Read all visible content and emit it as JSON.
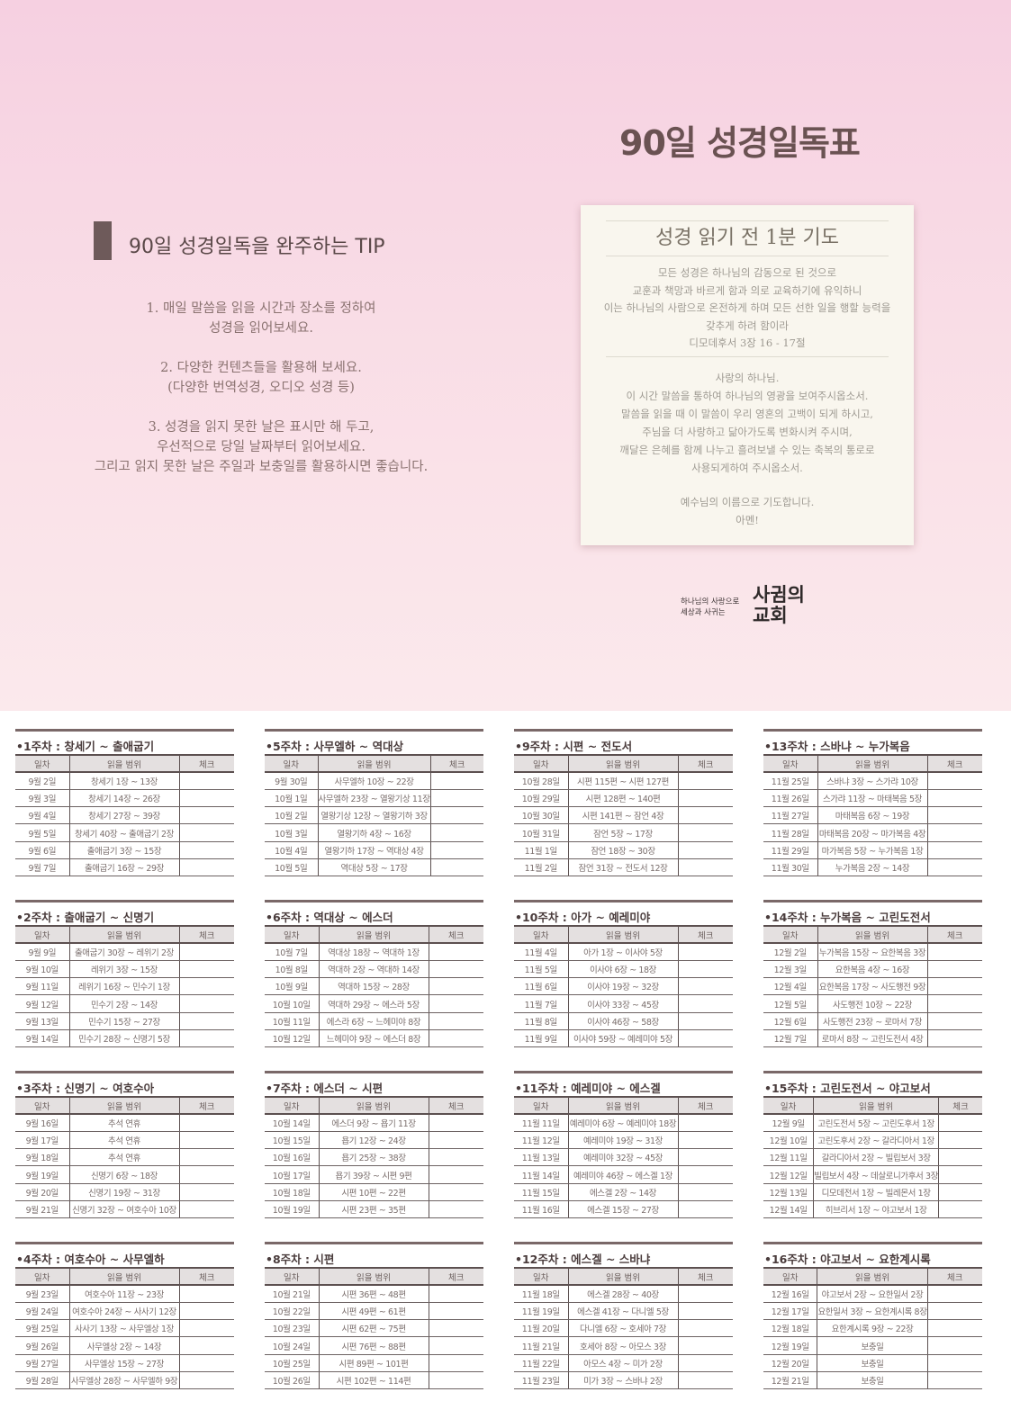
{
  "header": {
    "title": "90일 성경일독표"
  },
  "tips": {
    "heading": "90일 성경일독을 완주하는 TIP",
    "items": [
      "1. 매일 말씀을 읽을 시간과 장소를 정하여\n성경을 읽어보세요.",
      "2. 다양한 컨텐츠들을 활용해 보세요.\n(다양한 번역성경, 오디오 성경 등)",
      "3. 성경을 읽지 못한 날은 표시만 해 두고,\n우선적으로 당일 날짜부터 읽어보세요.\n그리고 읽지 못한 날은 주일과 보충일를 활용하시면 좋습니다."
    ]
  },
  "prayer": {
    "title": "성경 읽기 전 1분 기도",
    "verse": "모든 성경은 하나님의 감동으로 된 것으로\n교훈과 책망과 바르게 함과 의로 교육하기에 유익하니\n이는 하나님의 사람으로 온전하게 하며 모든 선한 일을 행할 능력을\n갖추게 하려 함이라\n디모데후서 3장 16 - 17절",
    "body": "사랑의 하나님.\n이 시간 말씀을 통하여 하나님의 영광을 보여주시옵소서.\n말씀을 읽을 때 이 말씀이 우리 영혼의 고백이 되게 하시고,\n주님을 더 사랑하고 닮아가도록 변화시켜 주시며,\n깨달은 은혜를 함께 나누고 흘려보낼 수 있는 축복의 통로로\n사용되게하여 주시옵소서.",
    "closing": "예수님의 이름으로 기도합니다.\n아멘!"
  },
  "logo": {
    "tagline": "하나님의 사랑으로\n세상과 사귀는",
    "name": "사귐의\n교회"
  },
  "table_headers": [
    "일차",
    "읽을 범위",
    "체크"
  ],
  "weeks": [
    {
      "title": "•1주차 : 창세기 ~ 출애굽기",
      "rows": [
        [
          "9월 2일",
          "창세기 1장 ~ 13장"
        ],
        [
          "9월 3일",
          "창세기 14장 ~ 26장"
        ],
        [
          "9월 4일",
          "창세기 27장 ~ 39장"
        ],
        [
          "9월 5일",
          "창세기 40장 ~ 출애굽기 2장"
        ],
        [
          "9월 6일",
          "출애굽기 3장 ~ 15장"
        ],
        [
          "9월 7일",
          "출애굽기 16장 ~ 29장"
        ]
      ]
    },
    {
      "title": "•2주차 : 출애굽기 ~ 신명기",
      "rows": [
        [
          "9월 9일",
          "출애굽기 30장 ~ 레위기 2장"
        ],
        [
          "9월 10일",
          "레위기 3장 ~ 15장"
        ],
        [
          "9월 11일",
          "레위기 16장 ~ 민수기 1장"
        ],
        [
          "9월 12일",
          "민수기 2장 ~ 14장"
        ],
        [
          "9월 13일",
          "민수기 15장 ~ 27장"
        ],
        [
          "9월 14일",
          "민수기 28장 ~ 신명기 5장"
        ]
      ]
    },
    {
      "title": "•3주차 : 신명기 ~ 여호수아",
      "rows": [
        [
          "9월 16일",
          "추석 연휴"
        ],
        [
          "9월 17일",
          "추석 연휴"
        ],
        [
          "9월 18일",
          "추석 연휴"
        ],
        [
          "9월 19일",
          "신명기 6장 ~ 18장"
        ],
        [
          "9월 20일",
          "신명기 19장 ~ 31장"
        ],
        [
          "9월 21일",
          "신명기 32장 ~ 여호수아 10장"
        ]
      ]
    },
    {
      "title": "•4주차 : 여호수아 ~ 사무엘하",
      "rows": [
        [
          "9월 23일",
          "여호수아 11장 ~ 23장"
        ],
        [
          "9월 24일",
          "여호수아 24장 ~ 사사기 12장"
        ],
        [
          "9월 25일",
          "사사기 13장 ~ 사무엘상 1장"
        ],
        [
          "9월 26일",
          "사무엘상 2장 ~ 14장"
        ],
        [
          "9월 27일",
          "사무엘상 15장 ~ 27장"
        ],
        [
          "9월 28일",
          "사무엘상 28장 ~ 사무엘하 9장"
        ]
      ]
    },
    {
      "title": "•5주차 : 사무엘하 ~ 역대상",
      "rows": [
        [
          "9월 30일",
          "사무엘하 10장 ~ 22장"
        ],
        [
          "10월 1일",
          "사무엘하 23장 ~ 열왕기상 11장"
        ],
        [
          "10월 2일",
          "열왕기상 12장 ~ 열왕기하 3장"
        ],
        [
          "10월 3일",
          "열왕기하 4장 ~ 16장"
        ],
        [
          "10월 4일",
          "열왕기하 17장 ~ 역대상 4장"
        ],
        [
          "10월 5일",
          "역대상 5장 ~ 17장"
        ]
      ]
    },
    {
      "title": "•6주차 : 역대상 ~ 에스더",
      "rows": [
        [
          "10월 7일",
          "역대상 18장 ~ 역대하 1장"
        ],
        [
          "10월 8일",
          "역대하 2장 ~ 역대하 14장"
        ],
        [
          "10월 9일",
          "역대하 15장 ~ 28장"
        ],
        [
          "10월 10일",
          "역대하 29장 ~ 에스라 5장"
        ],
        [
          "10월 11일",
          "에스라 6장 ~ 느헤미야 8장"
        ],
        [
          "10월 12일",
          "느헤미야 9장 ~ 에스더 8장"
        ]
      ]
    },
    {
      "title": "•7주차 : 에스더 ~ 시편",
      "rows": [
        [
          "10월 14일",
          "에스더 9장 ~ 욥기 11장"
        ],
        [
          "10월 15일",
          "욥기 12장 ~ 24장"
        ],
        [
          "10월 16일",
          "욥기 25장 ~ 38장"
        ],
        [
          "10월 17일",
          "욥기 39장 ~ 시편 9편"
        ],
        [
          "10월 18일",
          "시편 10편 ~ 22편"
        ],
        [
          "10월 19일",
          "시편 23편 ~ 35편"
        ]
      ]
    },
    {
      "title": "•8주차 : 시편",
      "rows": [
        [
          "10월 21일",
          "시편 36편 ~ 48편"
        ],
        [
          "10월 22일",
          "시편 49편 ~ 61편"
        ],
        [
          "10월 23일",
          "시편 62편 ~ 75편"
        ],
        [
          "10월 24일",
          "시편 76편 ~ 88편"
        ],
        [
          "10월 25일",
          "시편 89편 ~ 101편"
        ],
        [
          "10월 26일",
          "시편 102편 ~ 114편"
        ]
      ]
    },
    {
      "title": "•9주차 : 시편 ~ 전도서",
      "rows": [
        [
          "10월 28일",
          "시편 115편 ~ 시편 127편"
        ],
        [
          "10월 29일",
          "시편 128편 ~ 140편"
        ],
        [
          "10월 30일",
          "시편 141편 ~ 잠언 4장"
        ],
        [
          "10월 31일",
          "잠언 5장 ~ 17장"
        ],
        [
          "11월 1일",
          "잠언 18장 ~ 30장"
        ],
        [
          "11월 2일",
          "잠언 31장 ~ 전도서 12장"
        ]
      ]
    },
    {
      "title": "•10주차 : 아가 ~ 예레미야",
      "rows": [
        [
          "11월 4일",
          "아가 1장 ~ 이사야 5장"
        ],
        [
          "11월 5일",
          "이사야 6장 ~ 18장"
        ],
        [
          "11월 6일",
          "이사야 19장 ~ 32장"
        ],
        [
          "11월 7일",
          "이사야 33장 ~ 45장"
        ],
        [
          "11월 8일",
          "이사야 46장 ~ 58장"
        ],
        [
          "11월 9일",
          "이사야 59장 ~ 예레미야 5장"
        ]
      ]
    },
    {
      "title": "•11주차 : 예레미야 ~ 에스겔",
      "rows": [
        [
          "11월 11일",
          "예레미야 6장 ~ 예레미야 18장"
        ],
        [
          "11월 12일",
          "예레미야 19장 ~ 31장"
        ],
        [
          "11월 13일",
          "예레미야 32장 ~ 45장"
        ],
        [
          "11월 14일",
          "예레미야 46장 ~ 에스겔 1장"
        ],
        [
          "11월 15일",
          "에스겔 2장 ~ 14장"
        ],
        [
          "11월 16일",
          "에스겔 15장 ~ 27장"
        ]
      ]
    },
    {
      "title": "•12주차 : 에스겔 ~ 스바냐",
      "rows": [
        [
          "11월 18일",
          "에스겔 28장 ~ 40장"
        ],
        [
          "11월 19일",
          "에스겔 41장 ~ 다니엘 5장"
        ],
        [
          "11월 20일",
          "다니엘 6장 ~ 호세아 7장"
        ],
        [
          "11월 21일",
          "호세아 8장 ~ 아모스 3장"
        ],
        [
          "11월 22일",
          "아모스 4장 ~ 미가 2장"
        ],
        [
          "11월 23일",
          "미가 3장 ~ 스바냐 2장"
        ]
      ]
    },
    {
      "title": "•13주차 : 스바냐 ~ 누가복음",
      "rows": [
        [
          "11월 25일",
          "스바냐 3장 ~ 스가랴 10장"
        ],
        [
          "11월 26일",
          "스가랴 11장 ~ 마태복음 5장"
        ],
        [
          "11월 27일",
          "마태복음 6장 ~ 19장"
        ],
        [
          "11월 28일",
          "마태복음 20장 ~ 마가복음 4장"
        ],
        [
          "11월 29일",
          "마가복음 5장 ~ 누가복음 1장"
        ],
        [
          "11월 30일",
          "누가복음 2장 ~ 14장"
        ]
      ]
    },
    {
      "title": "•14주차 : 누가복음 ~ 고린도전서",
      "rows": [
        [
          "12월 2일",
          "누가복음 15장 ~ 요한복음 3장"
        ],
        [
          "12월 3일",
          "요한복음 4장 ~ 16장"
        ],
        [
          "12월 4일",
          "요한복음 17장 ~ 사도행전 9장"
        ],
        [
          "12월 5일",
          "사도행전 10장 ~ 22장"
        ],
        [
          "12월 6일",
          "사도행전 23장 ~ 로마서 7장"
        ],
        [
          "12월 7일",
          "로마서 8장 ~ 고린도전서 4장"
        ]
      ]
    },
    {
      "title": "•15주차 : 고린도전서 ~ 야고보서",
      "rows": [
        [
          "12월 9일",
          "고린도전서 5장 ~ 고린도후서 1장"
        ],
        [
          "12월 10일",
          "고린도후서 2장 ~ 갈라디아서 1장"
        ],
        [
          "12월 11일",
          "갈라디아서 2장 ~ 빌립보서 3장"
        ],
        [
          "12월 12일",
          "빌립보서 4장 ~ 데살로니가후서 3장"
        ],
        [
          "12월 13일",
          "디모데전서 1장 ~ 빌레몬서 1장"
        ],
        [
          "12월 14일",
          "히브리서 1장 ~ 야고보서 1장"
        ]
      ]
    },
    {
      "title": "•16주차 : 야고보서 ~ 요한계시록",
      "rows": [
        [
          "12월 16일",
          "야고보서 2장 ~ 요한일서 2장"
        ],
        [
          "12월 17일",
          "요한일서 3장 ~ 요한계시록 8장"
        ],
        [
          "12월 18일",
          "요한계시록 9장 ~ 22장"
        ],
        [
          "12월 19일",
          "보충일"
        ],
        [
          "12월 20일",
          "보충일"
        ],
        [
          "12월 21일",
          "보충일"
        ]
      ]
    }
  ]
}
